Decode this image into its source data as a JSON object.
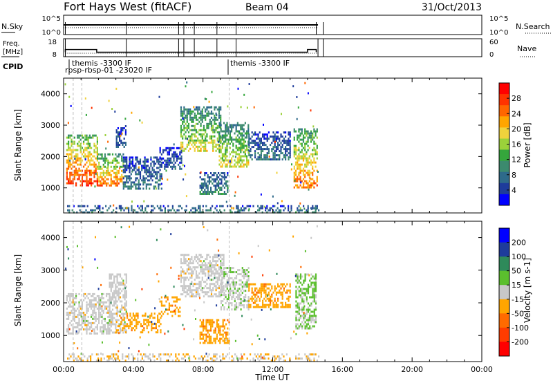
{
  "header": {
    "station": "Fort Hays West (fitACF)",
    "beam": "Beam 04",
    "date": "31/Oct/2013"
  },
  "strips": {
    "nsky": {
      "label": "N.Sky",
      "ticks": [
        "10^5",
        "10^0"
      ],
      "right_label": "N.Search",
      "right_ticks": [
        "10^5",
        "10^0"
      ]
    },
    "freq": {
      "label_line1": "Freq.",
      "label_line2": "[MHz]",
      "ticks": [
        18,
        8
      ],
      "right_label": "Nave",
      "right_ticks": [
        60,
        0
      ]
    },
    "cpid": {
      "label": "CPID",
      "annotations": [
        "themis -3300 IF",
        "rbsp-rbsp-01 -23020 IF",
        "themis -3300 IF"
      ]
    }
  },
  "colors": {
    "power_scale": [
      "#0000ff",
      "#1e3c9b",
      "#2e6a8a",
      "#3c8a6e",
      "#35a63c",
      "#9bd13a",
      "#f0d23c",
      "#ffa500",
      "#ff6600",
      "#ff3300",
      "#ff0000"
    ],
    "velocity_scale": [
      "#0000ff",
      "#1e3c9b",
      "#2e8a5a",
      "#5bbf2e",
      "#c8c8c8",
      "#ffa500",
      "#ff6a00",
      "#ff3c00",
      "#ff0000"
    ]
  },
  "chart_data": [
    {
      "type": "heatmap",
      "name": "power",
      "ylabel": "Slant Range [km]",
      "xlabel": "",
      "xlim": [
        0,
        24
      ],
      "ylim": [
        200,
        4500
      ],
      "yticks": [
        1000,
        2000,
        3000,
        4000
      ],
      "colorbar": {
        "label": "Power [dB]",
        "ticks": [
          4,
          8,
          12,
          16,
          20,
          24,
          28
        ],
        "range": [
          0,
          32
        ]
      },
      "regions": [
        {
          "t0": 0.15,
          "t1": 1.9,
          "r0": 1050,
          "r1": 2700,
          "v": 28
        },
        {
          "t0": 1.9,
          "t1": 3.4,
          "r0": 1100,
          "r1": 2100,
          "v": 24
        },
        {
          "t0": 3.0,
          "t1": 3.6,
          "r0": 2300,
          "r1": 3000,
          "v": 6
        },
        {
          "t0": 3.4,
          "t1": 5.6,
          "r0": 1000,
          "r1": 2000,
          "v": 8
        },
        {
          "t0": 5.5,
          "t1": 6.8,
          "r0": 1600,
          "r1": 2300,
          "v": 6
        },
        {
          "t0": 6.7,
          "t1": 9.0,
          "r0": 2200,
          "r1": 3600,
          "v": 18
        },
        {
          "t0": 7.8,
          "t1": 9.4,
          "r0": 800,
          "r1": 1500,
          "v": 10
        },
        {
          "t0": 8.9,
          "t1": 10.6,
          "r0": 1700,
          "r1": 3100,
          "v": 18
        },
        {
          "t0": 10.6,
          "t1": 13.0,
          "r0": 1900,
          "r1": 2800,
          "v": 8
        },
        {
          "t0": 13.2,
          "t1": 14.55,
          "r0": 1000,
          "r1": 2900,
          "v": 24
        },
        {
          "t0": 0.2,
          "t1": 14.6,
          "r0": 200,
          "r1": 450,
          "v": 10
        }
      ]
    },
    {
      "type": "heatmap",
      "name": "velocity",
      "ylabel": "Slant Range [km]",
      "xlabel": "Time UT",
      "xlim": [
        0,
        24
      ],
      "ylim": [
        200,
        4500
      ],
      "yticks": [
        1000,
        2000,
        3000,
        4000
      ],
      "xticks": [
        "00:00",
        "04:00",
        "08:00",
        "12:00",
        "16:00",
        "20:00",
        "00:00"
      ],
      "colorbar": {
        "label": "Velocity [m s-1]",
        "ticks": [
          200,
          100,
          50,
          15,
          -15,
          -50,
          -100,
          -200
        ],
        "range": [
          -250,
          250
        ]
      },
      "regions": [
        {
          "t0": 0.15,
          "t1": 2.6,
          "r0": 1050,
          "r1": 2300,
          "v": 0
        },
        {
          "t0": 2.6,
          "t1": 3.6,
          "r0": 1100,
          "r1": 2900,
          "v": 0
        },
        {
          "t0": 3.0,
          "t1": 5.6,
          "r0": 1100,
          "r1": 1700,
          "v": -60
        },
        {
          "t0": 5.5,
          "t1": 6.8,
          "r0": 1600,
          "r1": 2200,
          "v": -60
        },
        {
          "t0": 6.7,
          "t1": 9.2,
          "r0": 2200,
          "r1": 3500,
          "v": 0
        },
        {
          "t0": 7.8,
          "t1": 9.5,
          "r0": 800,
          "r1": 1500,
          "v": -60
        },
        {
          "t0": 9.0,
          "t1": 10.6,
          "r0": 1800,
          "r1": 3100,
          "v": 10
        },
        {
          "t0": 10.6,
          "t1": 13.0,
          "r0": 1900,
          "r1": 2600,
          "v": -60
        },
        {
          "t0": 13.3,
          "t1": 14.5,
          "r0": 1200,
          "r1": 2900,
          "v": 40
        },
        {
          "t0": 0.2,
          "t1": 14.6,
          "r0": 200,
          "r1": 450,
          "v": -20
        }
      ]
    }
  ]
}
